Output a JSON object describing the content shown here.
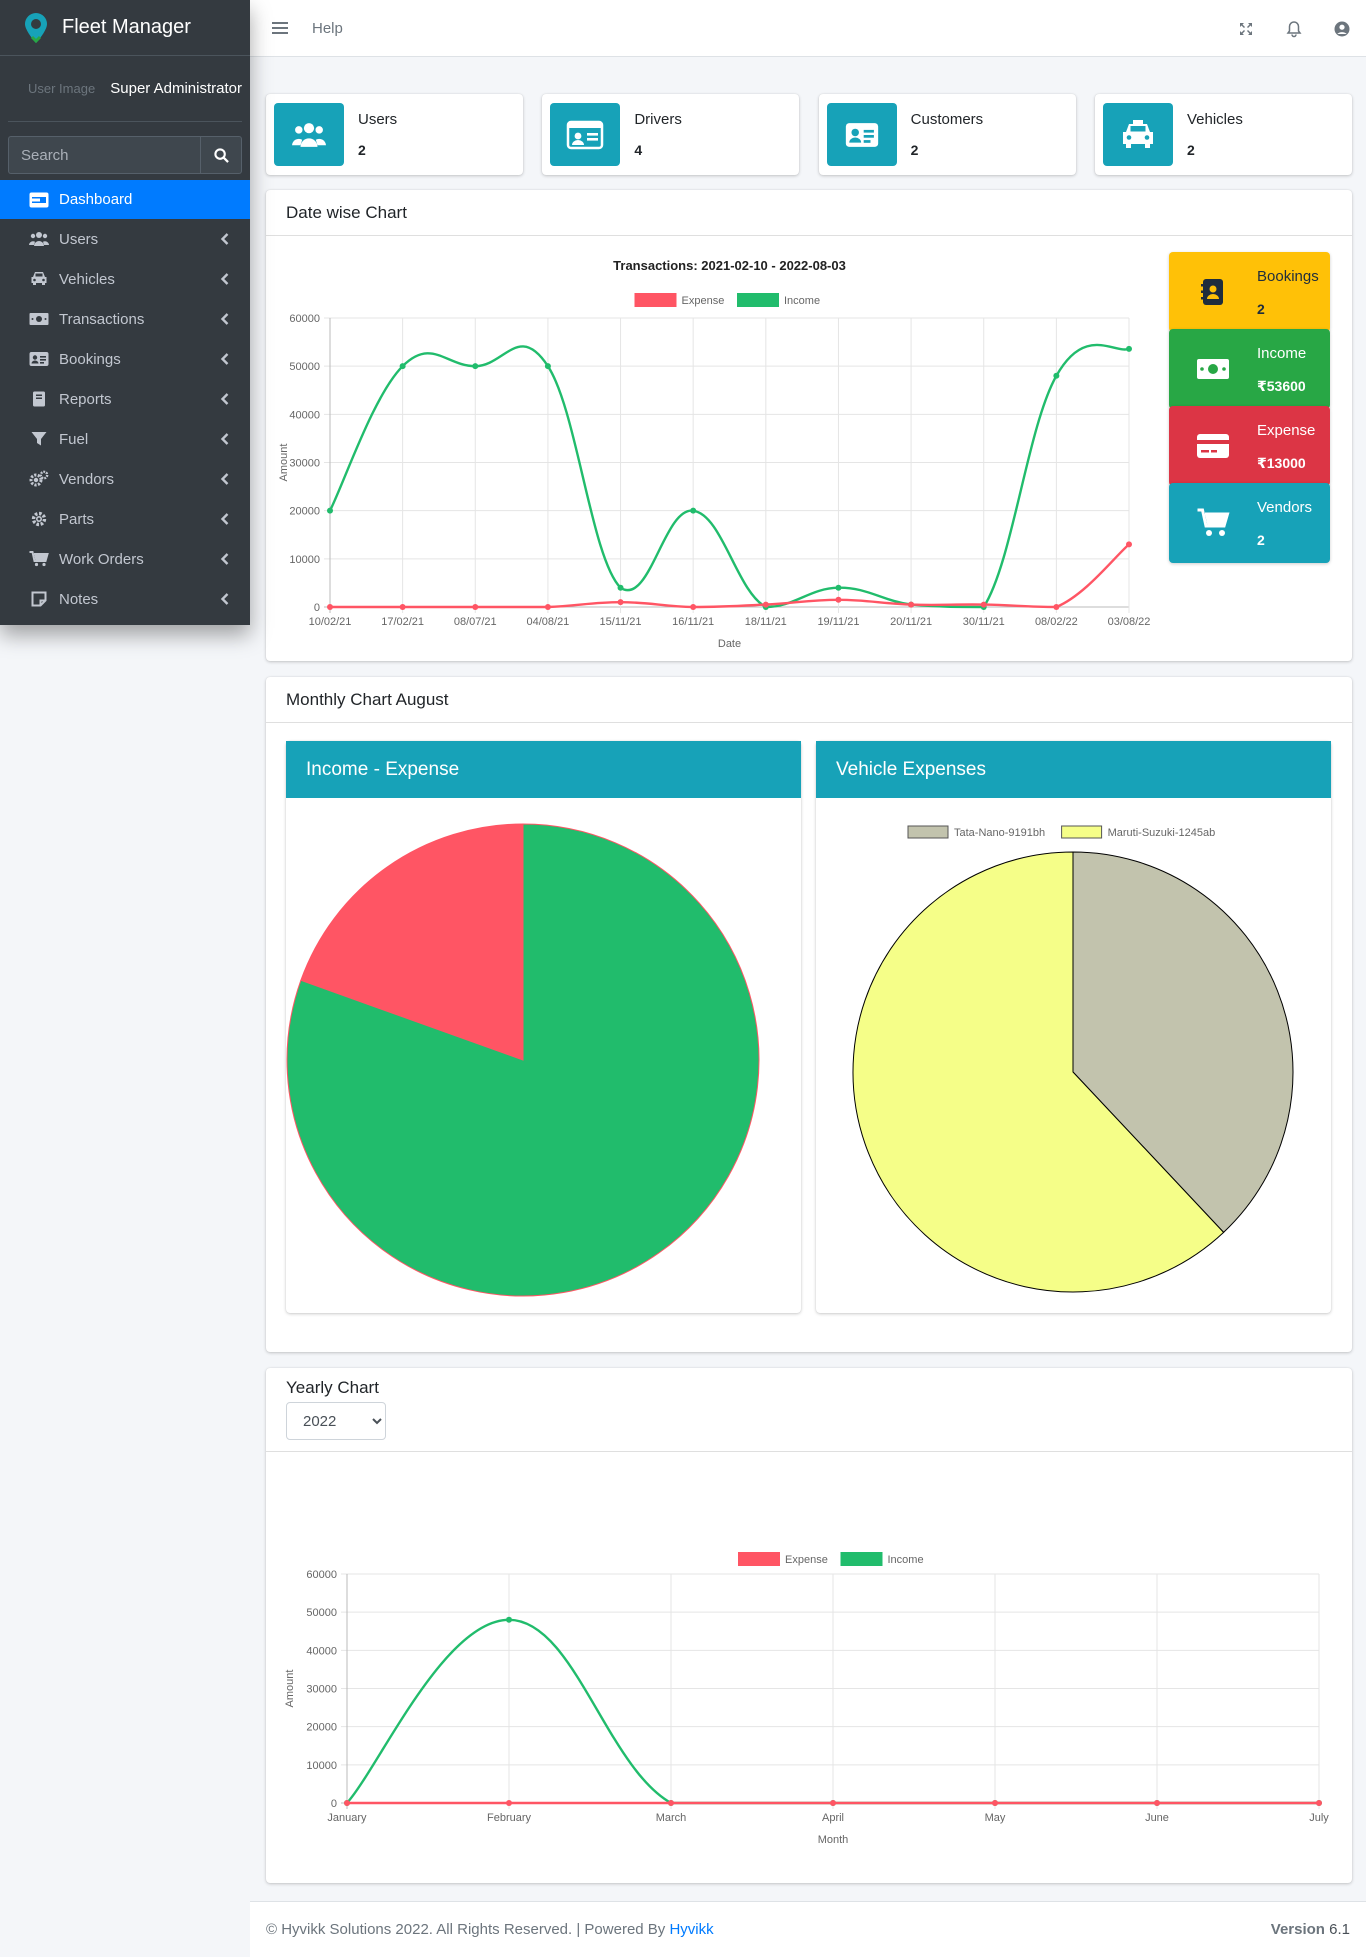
{
  "app": {
    "title": "Fleet Manager",
    "user_image_alt": "User Image",
    "user_name": "Super Administrator"
  },
  "search": {
    "placeholder": "Search"
  },
  "nav": {
    "items": [
      {
        "label": "Dashboard",
        "icon": "dashboard-icon",
        "active": true
      },
      {
        "label": "Users",
        "icon": "users-icon"
      },
      {
        "label": "Vehicles",
        "icon": "car-icon"
      },
      {
        "label": "Transactions",
        "icon": "money-icon"
      },
      {
        "label": "Bookings",
        "icon": "address-card-icon"
      },
      {
        "label": "Reports",
        "icon": "book-icon"
      },
      {
        "label": "Fuel",
        "icon": "filter-icon"
      },
      {
        "label": "Vendors",
        "icon": "cogs-icon"
      },
      {
        "label": "Parts",
        "icon": "gear-icon"
      },
      {
        "label": "Work Orders",
        "icon": "cart-icon"
      },
      {
        "label": "Notes",
        "icon": "note-icon"
      }
    ]
  },
  "topbar": {
    "help": "Help"
  },
  "info_boxes": [
    {
      "label": "Users",
      "value": "2",
      "icon": "users-icon"
    },
    {
      "label": "Drivers",
      "value": "4",
      "icon": "id-card-icon"
    },
    {
      "label": "Customers",
      "value": "2",
      "icon": "address-card-icon"
    },
    {
      "label": "Vehicles",
      "value": "2",
      "icon": "taxi-icon"
    }
  ],
  "date_card": {
    "title": "Date wise Chart"
  },
  "small_boxes": [
    {
      "label": "Bookings",
      "value": "2",
      "color": "#ffc107",
      "text_color": "#1f2d3d"
    },
    {
      "label": "Income",
      "value": "₹53600",
      "color": "#28a745",
      "text_color": "#ffffff"
    },
    {
      "label": "Expense",
      "value": "₹13000",
      "color": "#dc3545",
      "text_color": "#ffffff"
    },
    {
      "label": "Vendors",
      "value": "2",
      "color": "#17a2b8",
      "text_color": "#ffffff"
    }
  ],
  "monthly_card": {
    "title": "Monthly Chart August",
    "left_title": "Income - Expense",
    "right_title": "Vehicle Expenses"
  },
  "yearly_card": {
    "title": "Yearly Chart",
    "selected_year": "2022"
  },
  "footer": {
    "copyright": "© Hyvikk Solutions 2022. All Rights Reserved. | Powered By ",
    "link": "Hyvikk",
    "version_label": "Version",
    "version": "6.1"
  },
  "colors": {
    "expense": "#ff5564",
    "income": "#21bc6c",
    "tata": "#c2c3ad",
    "maruti": "#f5fe88"
  },
  "chart_data": [
    {
      "type": "line",
      "title": "Transactions: 2021-02-10 - 2022-08-03",
      "xlabel": "Date",
      "ylabel": "Amount",
      "ylim": [
        0,
        60000
      ],
      "yticks": [
        0,
        10000,
        20000,
        30000,
        40000,
        50000,
        60000
      ],
      "grid": true,
      "legend": "top",
      "categories": [
        "10/02/21",
        "17/02/21",
        "08/07/21",
        "04/08/21",
        "15/11/21",
        "16/11/21",
        "18/11/21",
        "19/11/21",
        "20/11/21",
        "30/11/21",
        "08/02/22",
        "03/08/22"
      ],
      "series": [
        {
          "name": "Expense",
          "color": "#ff5564",
          "values": [
            0,
            0,
            0,
            0,
            1000,
            0,
            500,
            1500,
            500,
            500,
            0,
            13000
          ]
        },
        {
          "name": "Income",
          "color": "#21bc6c",
          "values": [
            20000,
            50000,
            50000,
            50000,
            4000,
            20000,
            0,
            4000,
            500,
            0,
            48000,
            53600
          ]
        }
      ]
    },
    {
      "type": "pie",
      "labels": [
        "Expense",
        "Income"
      ],
      "values": [
        13000,
        53600
      ],
      "colors": [
        "#ff5564",
        "#21bc6c"
      ]
    },
    {
      "type": "pie",
      "legend": "top",
      "labels": [
        "Tata-Nano-9191bh",
        "Maruti-Suzuki-1245ab"
      ],
      "values": [
        38,
        62
      ],
      "colors": [
        "#c2c3ad",
        "#f5fe88"
      ]
    },
    {
      "type": "line",
      "xlabel": "Month",
      "ylabel": "Amount",
      "ylim": [
        0,
        60000
      ],
      "yticks": [
        0,
        10000,
        20000,
        30000,
        40000,
        50000,
        60000
      ],
      "grid": true,
      "legend": "top",
      "categories": [
        "January",
        "February",
        "March",
        "April",
        "May",
        "June",
        "July"
      ],
      "series": [
        {
          "name": "Expense",
          "color": "#ff5564",
          "values": [
            0,
            0,
            0,
            0,
            0,
            0,
            0
          ]
        },
        {
          "name": "Income",
          "color": "#21bc6c",
          "values": [
            0,
            48000,
            0,
            0,
            0,
            0,
            0
          ]
        }
      ]
    }
  ]
}
